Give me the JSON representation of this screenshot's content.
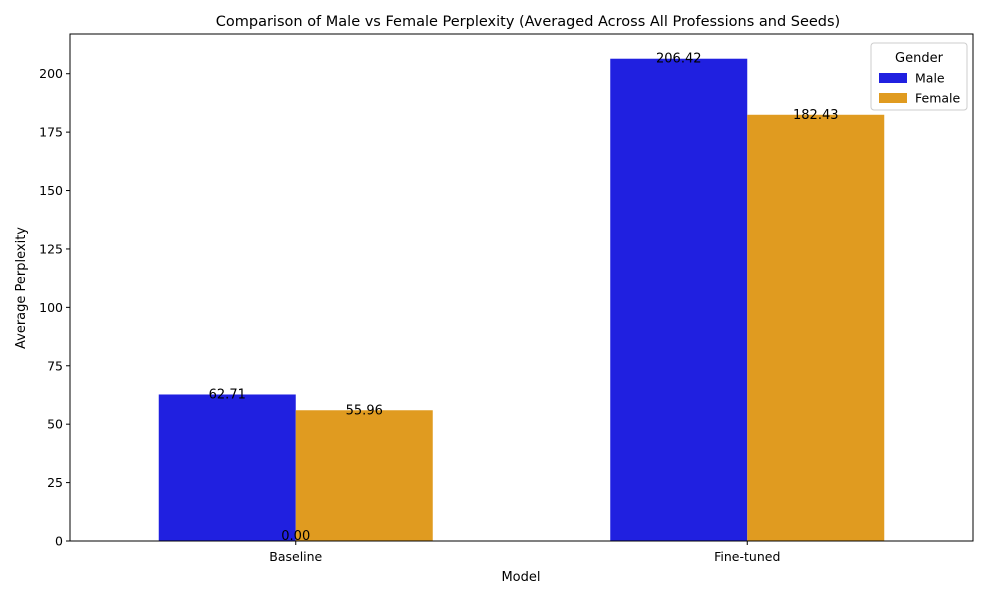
{
  "chart_data": {
    "type": "bar",
    "title": "Comparison of Male vs Female Perplexity (Averaged Across All Professions and Seeds)",
    "xlabel": "Model",
    "ylabel": "Average Perplexity",
    "categories": [
      "Baseline",
      "Fine-tuned"
    ],
    "series": [
      {
        "name": "Male",
        "color": "#2020e0",
        "values": [
          62.71,
          206.42
        ],
        "labels": [
          "62.71",
          "206.42"
        ]
      },
      {
        "name": "Female",
        "color": "#e09b20",
        "values": [
          55.96,
          182.43
        ],
        "labels": [
          "55.96",
          "182.43"
        ]
      }
    ],
    "extra_annotations": [
      {
        "text": "0.00",
        "category": "Baseline",
        "value": 0
      }
    ],
    "ylim": [
      0,
      217
    ],
    "yticks": [
      0,
      25,
      50,
      75,
      100,
      125,
      150,
      175,
      200
    ],
    "legend": {
      "title": "Gender",
      "position": "top-right"
    },
    "grid": false
  }
}
